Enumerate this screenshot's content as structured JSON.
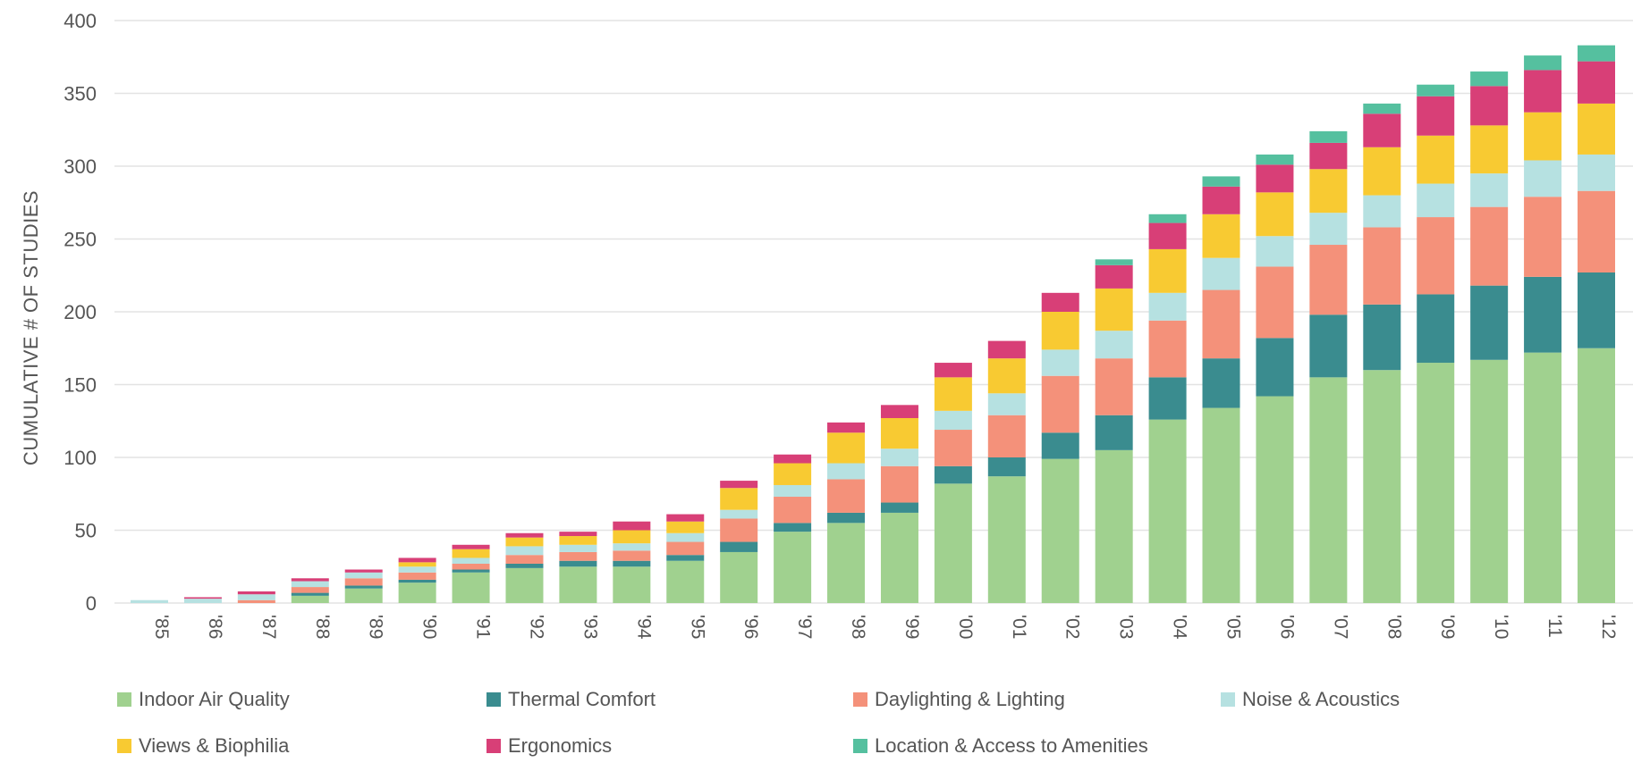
{
  "chart_data": {
    "type": "bar",
    "stacked": true,
    "ylabel": "CUMULATIVE # OF STUDIES",
    "xlabel": "",
    "ylim": [
      0,
      400
    ],
    "yticks": [
      0,
      50,
      100,
      150,
      200,
      250,
      300,
      350,
      400
    ],
    "grid": true,
    "legend_placement": "bottom",
    "categories": [
      "'85",
      "'86",
      "'87",
      "'88",
      "'89",
      "'90",
      "'91",
      "'92",
      "'93",
      "'94",
      "'95",
      "'96",
      "'97",
      "'98",
      "'99",
      "'00",
      "'01",
      "'02",
      "'03",
      "'04",
      "'05",
      "'06",
      "'07",
      "'08",
      "'09",
      "'10",
      "'11",
      "'12"
    ],
    "series": [
      {
        "name": "Indoor Air Quality",
        "color": "#a0d18f",
        "values": [
          0,
          0,
          0,
          5,
          10,
          14,
          21,
          24,
          25,
          25,
          29,
          35,
          49,
          55,
          62,
          82,
          87,
          99,
          105,
          126,
          134,
          142,
          155,
          160,
          165,
          167,
          172,
          175
        ]
      },
      {
        "name": "Thermal Comfort",
        "color": "#3a8c8f",
        "values": [
          0,
          0,
          0,
          2,
          2,
          2,
          2,
          3,
          4,
          4,
          4,
          7,
          6,
          7,
          7,
          12,
          13,
          18,
          24,
          29,
          34,
          40,
          43,
          45,
          47,
          51,
          52,
          52
        ]
      },
      {
        "name": "Daylighting & Lighting",
        "color": "#f4917a",
        "values": [
          0,
          0,
          2,
          4,
          5,
          5,
          4,
          6,
          6,
          7,
          9,
          16,
          18,
          23,
          25,
          25,
          29,
          39,
          39,
          39,
          47,
          49,
          48,
          53,
          53,
          54,
          55,
          56
        ]
      },
      {
        "name": "Noise & Acoustics",
        "color": "#b6e1e1",
        "values": [
          2,
          3,
          4,
          4,
          4,
          4,
          4,
          6,
          5,
          5,
          6,
          6,
          8,
          11,
          12,
          13,
          15,
          18,
          19,
          19,
          22,
          21,
          22,
          22,
          23,
          23,
          25,
          25
        ]
      },
      {
        "name": "Views & Biophilia",
        "color": "#f8ca32",
        "values": [
          0,
          0,
          0,
          0,
          0,
          3,
          6,
          6,
          6,
          9,
          8,
          15,
          15,
          21,
          21,
          23,
          24,
          26,
          29,
          30,
          30,
          30,
          30,
          33,
          33,
          33,
          33,
          35
        ]
      },
      {
        "name": "Ergonomics",
        "color": "#d83f77",
        "values": [
          0,
          1,
          2,
          2,
          2,
          3,
          3,
          3,
          3,
          6,
          5,
          5,
          6,
          7,
          9,
          10,
          12,
          13,
          16,
          18,
          19,
          19,
          18,
          23,
          27,
          27,
          29,
          29
        ]
      },
      {
        "name": "Location & Access to Amenities",
        "color": "#55c09f",
        "values": [
          0,
          0,
          0,
          0,
          0,
          0,
          0,
          0,
          0,
          0,
          0,
          0,
          0,
          0,
          0,
          0,
          0,
          0,
          4,
          6,
          7,
          7,
          8,
          7,
          8,
          10,
          10,
          11
        ]
      }
    ]
  }
}
